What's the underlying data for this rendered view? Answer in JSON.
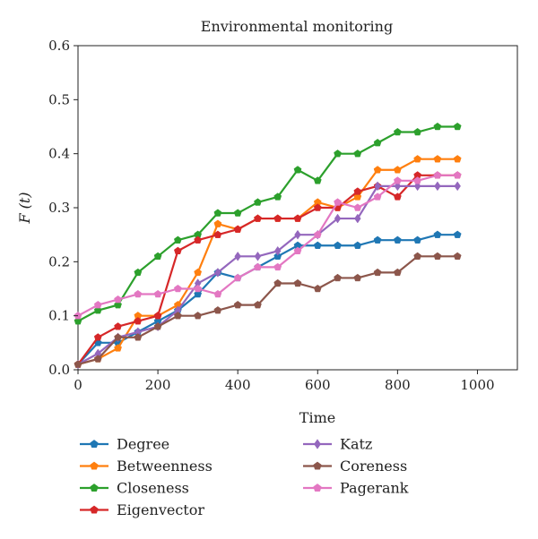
{
  "chart_data": {
    "type": "line",
    "title": "Environmental monitoring",
    "xlabel": "Time",
    "ylabel": "F (t)",
    "xlim": [
      0,
      1100
    ],
    "ylim": [
      0,
      0.6
    ],
    "xticks": [
      0,
      200,
      400,
      600,
      800,
      1000
    ],
    "yticks": [
      0.0,
      0.1,
      0.2,
      0.3,
      0.4,
      0.5,
      0.6
    ],
    "xtick_labels": [
      "0",
      "200",
      "400",
      "600",
      "800",
      "1000"
    ],
    "ytick_labels": [
      "0.0",
      "0.1",
      "0.2",
      "0.3",
      "0.4",
      "0.5",
      "0.6"
    ],
    "grid": false,
    "legend_position": "below",
    "x": [
      0,
      50,
      100,
      150,
      200,
      250,
      300,
      350,
      400,
      450,
      500,
      550,
      600,
      650,
      700,
      750,
      800,
      850,
      900,
      950
    ],
    "series": [
      {
        "name": "Degree",
        "color": "#1f77b4",
        "marker": "pentagon",
        "values": [
          0.01,
          0.05,
          0.05,
          0.07,
          0.09,
          0.11,
          0.14,
          0.18,
          0.17,
          0.19,
          0.21,
          0.23,
          0.23,
          0.23,
          0.23,
          0.24,
          0.24,
          0.24,
          0.25,
          0.25
        ]
      },
      {
        "name": "Betweenness",
        "color": "#ff7f0e",
        "marker": "pentagon",
        "values": [
          0.01,
          0.02,
          0.04,
          0.1,
          0.1,
          0.12,
          0.18,
          0.27,
          0.26,
          0.28,
          0.28,
          0.28,
          0.31,
          0.3,
          0.32,
          0.37,
          0.37,
          0.39,
          0.39,
          0.39
        ]
      },
      {
        "name": "Closeness",
        "color": "#2ca02c",
        "marker": "pentagon",
        "values": [
          0.09,
          0.11,
          0.12,
          0.18,
          0.21,
          0.24,
          0.25,
          0.29,
          0.29,
          0.31,
          0.32,
          0.37,
          0.35,
          0.4,
          0.4,
          0.42,
          0.44,
          0.44,
          0.45,
          0.45
        ]
      },
      {
        "name": "Eigenvector",
        "color": "#d62728",
        "marker": "pentagon",
        "values": [
          0.01,
          0.06,
          0.08,
          0.09,
          0.1,
          0.22,
          0.24,
          0.25,
          0.26,
          0.28,
          0.28,
          0.28,
          0.3,
          0.3,
          0.33,
          0.34,
          0.32,
          0.36,
          0.36,
          0.36
        ]
      },
      {
        "name": "Katz",
        "color": "#9467bd",
        "marker": "diamond",
        "values": [
          0.01,
          0.03,
          0.06,
          0.07,
          0.08,
          0.11,
          0.16,
          0.18,
          0.21,
          0.21,
          0.22,
          0.25,
          0.25,
          0.28,
          0.28,
          0.34,
          0.34,
          0.34,
          0.34,
          0.34
        ]
      },
      {
        "name": "Coreness",
        "color": "#8c564b",
        "marker": "pentagon",
        "values": [
          0.01,
          0.02,
          0.06,
          0.06,
          0.08,
          0.1,
          0.1,
          0.11,
          0.12,
          0.12,
          0.16,
          0.16,
          0.15,
          0.17,
          0.17,
          0.18,
          0.18,
          0.21,
          0.21,
          0.21
        ]
      },
      {
        "name": "Pagerank",
        "color": "#e377c2",
        "marker": "pentagon",
        "values": [
          0.1,
          0.12,
          0.13,
          0.14,
          0.14,
          0.15,
          0.15,
          0.14,
          0.17,
          0.19,
          0.19,
          0.22,
          0.25,
          0.31,
          0.3,
          0.32,
          0.35,
          0.35,
          0.36,
          0.36
        ]
      }
    ]
  }
}
